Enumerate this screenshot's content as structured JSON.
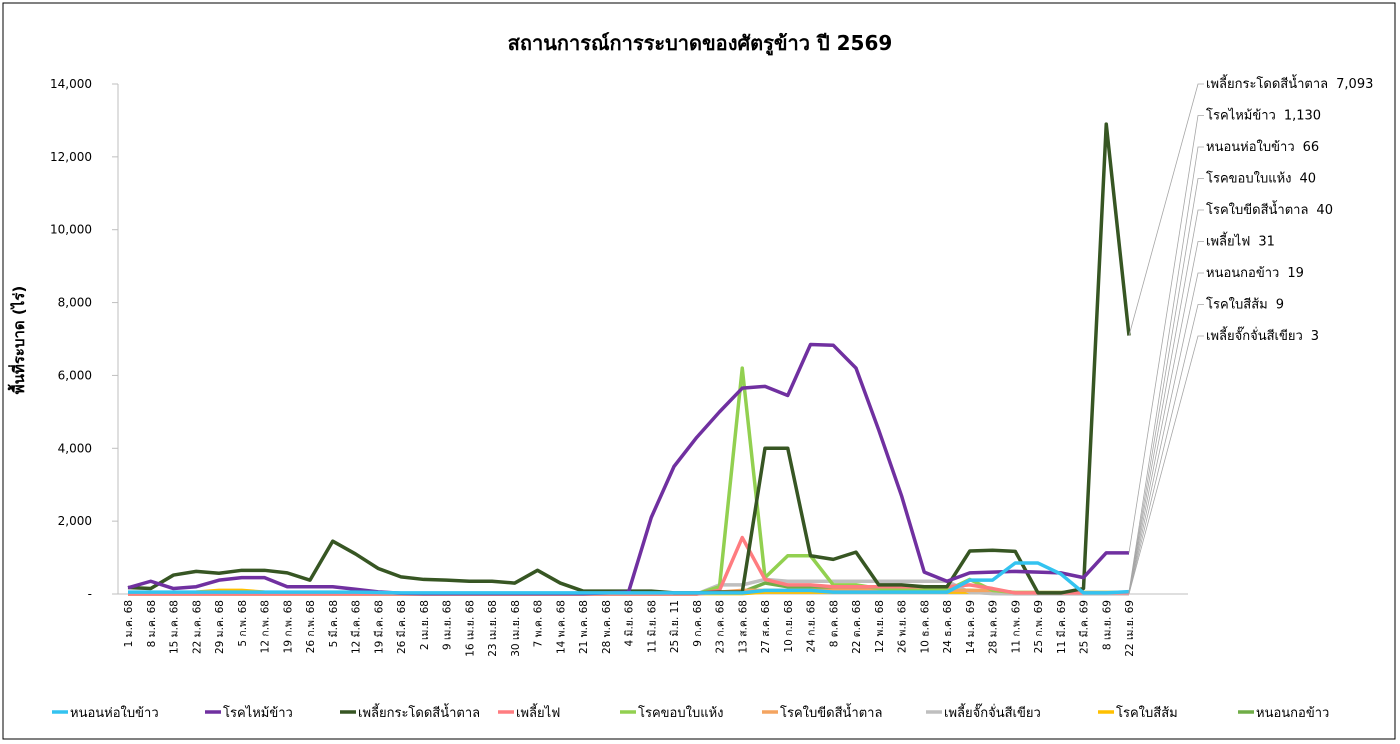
{
  "chart_data": {
    "type": "line",
    "title": "สถานการณ์การระบาดของศัตรูข้าว ปี 2569",
    "y_label": "พื้นที่ระบาด (ไร่)",
    "categories": [
      "1 ม.ค. 68",
      "8 ม.ค. 68",
      "15 ม.ค. 68",
      "22 ม.ค. 68",
      "29 ม.ค. 68",
      "5 ก.พ. 68",
      "12 ก.พ. 68",
      "19 ก.พ. 68",
      "26 ก.พ. 68",
      "5 มี.ค. 68",
      "12 มี.ค. 68",
      "19 มี.ค. 68",
      "26 มี.ค. 68",
      "2 เม.ย. 68",
      "9 เม.ย. 68",
      "16 เม.ย. 68",
      "23 เม.ย. 68",
      "30 เม.ย. 68",
      "7 พ.ค. 68",
      "14 พ.ค. 68",
      "21 พ.ค. 68",
      "28 พ.ค. 68",
      "4 มิ.ย. 68",
      "11 มิ.ย. 68",
      "25 มิ.ย. 11",
      "9 ก.ค. 68",
      "23 ก.ค. 68",
      "13 ส.ค. 68",
      "27 ส.ค. 68",
      "10 ก.ย. 68",
      "24 ก.ย. 68",
      "8 ต.ค. 68",
      "22 ต.ค. 68",
      "12 พ.ย. 68",
      "26 พ.ย. 68",
      "10 ธ.ค. 68",
      "24 ธ.ค. 68",
      "14 ม.ค. 69",
      "28 ม.ค. 69",
      "11 ก.พ. 69",
      "25 ก.พ. 69",
      "11 มี.ค. 69",
      "25 มี.ค. 69",
      "8 เม.ย. 69",
      "22 เม.ย. 69"
    ],
    "series": [
      {
        "name": "หนอนห่อใบข้าว",
        "color": "#33c3f0",
        "values": [
          50,
          50,
          50,
          50,
          50,
          50,
          50,
          50,
          50,
          50,
          50,
          40,
          30,
          30,
          30,
          30,
          30,
          30,
          30,
          30,
          30,
          30,
          30,
          30,
          30,
          30,
          30,
          30,
          100,
          100,
          100,
          50,
          50,
          50,
          50,
          50,
          50,
          380,
          380,
          850,
          850,
          550,
          30,
          30,
          66
        ]
      },
      {
        "name": "โรคไหม้ข้าว",
        "color": "#7030a0",
        "values": [
          170,
          350,
          150,
          200,
          380,
          450,
          450,
          200,
          200,
          200,
          130,
          60,
          20,
          10,
          10,
          10,
          10,
          10,
          10,
          10,
          10,
          30,
          50,
          2100,
          3500,
          4300,
          5000,
          5650,
          5700,
          5450,
          6850,
          6830,
          6200,
          4500,
          2700,
          600,
          350,
          580,
          600,
          620,
          600,
          580,
          450,
          1130,
          1130
        ],
        "value_labels": [
          null,
          null,
          null,
          null,
          null,
          null,
          null,
          null,
          null,
          null,
          null,
          null,
          null,
          null,
          null,
          null,
          null,
          null,
          null,
          null,
          null,
          null,
          null,
          null,
          null,
          null,
          null,
          null,
          null,
          null,
          null,
          null,
          null,
          null,
          null,
          null,
          null,
          null,
          null,
          null,
          null,
          null,
          null,
          null,
          "1,130"
        ]
      },
      {
        "name": "เพลี้ยกระโดดสีน้ำตาล",
        "color": "#375623",
        "values": [
          180,
          150,
          520,
          620,
          570,
          650,
          650,
          580,
          380,
          1450,
          1100,
          700,
          470,
          400,
          380,
          350,
          350,
          300,
          650,
          300,
          80,
          80,
          80,
          80,
          30,
          30,
          50,
          50,
          4000,
          4000,
          1050,
          950,
          1150,
          250,
          250,
          200,
          200,
          1180,
          1200,
          1170,
          30,
          30,
          150,
          12900,
          7093
        ],
        "value_labels": [
          null,
          null,
          null,
          null,
          null,
          null,
          null,
          null,
          null,
          null,
          null,
          null,
          null,
          null,
          null,
          null,
          null,
          null,
          null,
          null,
          null,
          null,
          null,
          null,
          null,
          null,
          null,
          null,
          null,
          null,
          null,
          null,
          null,
          null,
          null,
          null,
          null,
          null,
          null,
          null,
          null,
          null,
          null,
          null,
          "7,093"
        ]
      },
      {
        "name": "เพลี้ยไฟ",
        "color": "#ff7c80",
        "values": [
          0,
          0,
          0,
          0,
          0,
          0,
          0,
          0,
          0,
          0,
          0,
          0,
          0,
          0,
          0,
          0,
          0,
          0,
          0,
          0,
          0,
          0,
          0,
          0,
          0,
          0,
          100,
          1550,
          400,
          250,
          250,
          200,
          200,
          200,
          200,
          200,
          200,
          250,
          150,
          30,
          30,
          30,
          30,
          30,
          31
        ]
      },
      {
        "name": "โรคขอบใบแห้ง",
        "color": "#92d050",
        "values": [
          0,
          0,
          0,
          0,
          0,
          0,
          0,
          0,
          0,
          0,
          0,
          0,
          0,
          0,
          0,
          0,
          0,
          0,
          0,
          0,
          0,
          0,
          0,
          0,
          0,
          0,
          200,
          6200,
          450,
          1050,
          1050,
          250,
          250,
          150,
          100,
          100,
          100,
          400,
          100,
          40,
          40,
          40,
          40,
          40,
          40
        ]
      },
      {
        "name": "โรคใบขีดสีน้ำตาล",
        "color": "#f4a460",
        "values": [
          0,
          0,
          0,
          0,
          0,
          0,
          0,
          0,
          0,
          0,
          0,
          0,
          0,
          0,
          0,
          0,
          0,
          0,
          0,
          0,
          0,
          0,
          0,
          0,
          0,
          0,
          50,
          100,
          100,
          100,
          100,
          100,
          100,
          100,
          100,
          100,
          100,
          100,
          100,
          40,
          40,
          40,
          40,
          40,
          40
        ]
      },
      {
        "name": "เพลี้ยจั๊กจั่นสีเขียว",
        "color": "#bfbfbf",
        "values": [
          0,
          0,
          0,
          0,
          0,
          0,
          0,
          0,
          0,
          0,
          0,
          0,
          0,
          0,
          0,
          0,
          0,
          0,
          0,
          0,
          0,
          0,
          0,
          0,
          0,
          0,
          250,
          250,
          400,
          350,
          350,
          350,
          350,
          350,
          350,
          350,
          350,
          50,
          10,
          3,
          3,
          3,
          3,
          3,
          3
        ]
      },
      {
        "name": "โรคใบสีส้ม",
        "color": "#ffc000",
        "values": [
          20,
          20,
          20,
          50,
          100,
          100,
          50,
          20,
          20,
          20,
          20,
          10,
          10,
          10,
          10,
          10,
          10,
          10,
          10,
          10,
          10,
          10,
          10,
          10,
          10,
          10,
          10,
          10,
          50,
          50,
          50,
          50,
          50,
          50,
          50,
          50,
          50,
          50,
          20,
          9,
          9,
          9,
          9,
          9,
          9
        ]
      },
      {
        "name": "หนอนกอข้าว",
        "color": "#70ad47",
        "values": [
          20,
          20,
          20,
          20,
          20,
          20,
          20,
          20,
          20,
          20,
          20,
          20,
          20,
          20,
          20,
          20,
          20,
          20,
          20,
          20,
          20,
          20,
          20,
          20,
          20,
          20,
          50,
          50,
          300,
          200,
          200,
          150,
          150,
          100,
          100,
          100,
          100,
          100,
          50,
          19,
          19,
          19,
          19,
          19,
          19
        ]
      }
    ],
    "ylim": [
      0,
      14000
    ],
    "yticks": [
      {
        "value": 0,
        "label": "-"
      },
      {
        "value": 2000,
        "label": "2,000"
      },
      {
        "value": 4000,
        "label": "4,000"
      },
      {
        "value": 6000,
        "label": "6,000"
      },
      {
        "value": 8000,
        "label": "8,000"
      },
      {
        "value": 10000,
        "label": "10,000"
      },
      {
        "value": 12000,
        "label": "12,000"
      },
      {
        "value": 14000,
        "label": "14,000"
      }
    ],
    "legend": "bottom"
  }
}
